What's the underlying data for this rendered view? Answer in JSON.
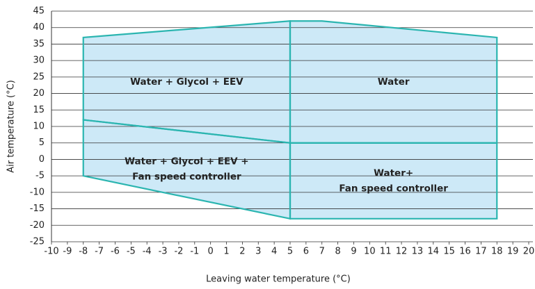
{
  "chart_data": {
    "type": "envelope",
    "xlabel": "Leaving water temperature (°C)",
    "ylabel": "Air temperature (°C)",
    "xlim": [
      -10,
      20
    ],
    "ylim": [
      -25,
      45
    ],
    "xticks": [
      -10,
      -9,
      -8,
      -7,
      -6,
      -5,
      -4,
      -3,
      -2,
      -1,
      0,
      1,
      2,
      3,
      4,
      5,
      6,
      7,
      8,
      9,
      10,
      11,
      12,
      13,
      14,
      15,
      16,
      17,
      18,
      19,
      20
    ],
    "yticks": [
      -25,
      -20,
      -15,
      -10,
      -5,
      0,
      5,
      10,
      15,
      20,
      25,
      30,
      35,
      40,
      45
    ],
    "grid": true,
    "fill": "#cde9f7",
    "color": "#2bb5b0",
    "regions": [
      {
        "label": [
          "Water + Glycol + EEV"
        ],
        "x": [
          -8,
          5,
          5,
          -8
        ],
        "y": [
          37,
          42,
          5,
          12
        ]
      },
      {
        "label": [
          "Water + Glycol + EEV +",
          "Fan speed controller"
        ],
        "x": [
          -8,
          5,
          5,
          -8
        ],
        "y": [
          12,
          5,
          -18,
          -5
        ]
      },
      {
        "label": [
          "Water"
        ],
        "x": [
          5,
          7,
          18,
          18,
          5
        ],
        "y": [
          42,
          42,
          37,
          5,
          5
        ]
      },
      {
        "label": [
          "Water+",
          "Fan speed controller"
        ],
        "x": [
          5,
          18,
          18,
          5
        ],
        "y": [
          5,
          5,
          -18,
          -18
        ]
      }
    ]
  }
}
